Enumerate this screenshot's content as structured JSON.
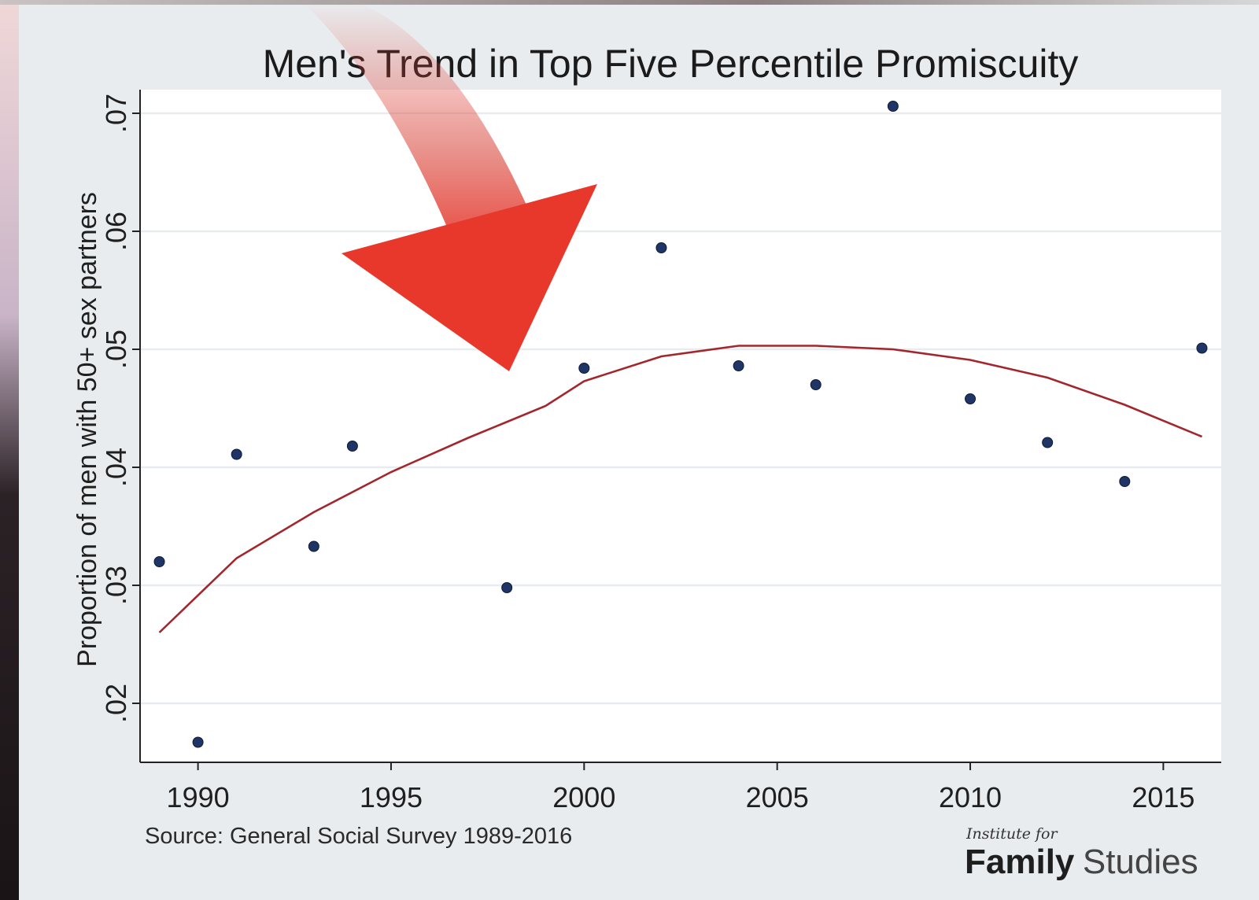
{
  "chart_data": {
    "type": "scatter",
    "title": "Men's Trend in Top Five Percentile Promiscuity",
    "ylabel": "Proportion of men with 50+ sex partners",
    "xlabel": "",
    "xlim": [
      1988.5,
      2016.5
    ],
    "ylim": [
      0.015,
      0.072
    ],
    "x_ticks": [
      1990,
      1995,
      2000,
      2005,
      2010,
      2015
    ],
    "y_ticks": [
      0.02,
      0.03,
      0.04,
      0.05,
      0.06,
      0.07
    ],
    "y_tick_labels": [
      ".02",
      ".03",
      ".04",
      ".05",
      ".06",
      ".07"
    ],
    "grid": true,
    "points": [
      {
        "x": 1989,
        "y": 0.032
      },
      {
        "x": 1990,
        "y": 0.0167
      },
      {
        "x": 1991,
        "y": 0.0411
      },
      {
        "x": 1993,
        "y": 0.0333
      },
      {
        "x": 1994,
        "y": 0.0418
      },
      {
        "x": 1998,
        "y": 0.0298
      },
      {
        "x": 2000,
        "y": 0.0484
      },
      {
        "x": 2002,
        "y": 0.0586
      },
      {
        "x": 2004,
        "y": 0.0486
      },
      {
        "x": 2006,
        "y": 0.047
      },
      {
        "x": 2008,
        "y": 0.0706
      },
      {
        "x": 2010,
        "y": 0.0458
      },
      {
        "x": 2012,
        "y": 0.0421
      },
      {
        "x": 2014,
        "y": 0.0388
      },
      {
        "x": 2016,
        "y": 0.0501
      }
    ],
    "fit_line": [
      {
        "x": 1989,
        "y": 0.026
      },
      {
        "x": 1991,
        "y": 0.0323
      },
      {
        "x": 1993,
        "y": 0.0362
      },
      {
        "x": 1995,
        "y": 0.0396
      },
      {
        "x": 1997,
        "y": 0.0425
      },
      {
        "x": 1999,
        "y": 0.0452
      },
      {
        "x": 2000,
        "y": 0.0473
      },
      {
        "x": 2002,
        "y": 0.0494
      },
      {
        "x": 2004,
        "y": 0.0503
      },
      {
        "x": 2006,
        "y": 0.0503
      },
      {
        "x": 2008,
        "y": 0.05
      },
      {
        "x": 2010,
        "y": 0.0491
      },
      {
        "x": 2012,
        "y": 0.0476
      },
      {
        "x": 2014,
        "y": 0.0453
      },
      {
        "x": 2016,
        "y": 0.0426
      }
    ],
    "marker_color": "#1f3566",
    "line_color": "#a3262c",
    "plot_background": "#ffffff"
  },
  "source_note": "Source: General Social Survey 1989-2016",
  "logo": {
    "line1": "Institute for",
    "word1": "Family",
    "word2": "Studies"
  },
  "annotation": {
    "shape": "arrow",
    "color": "#e8382c"
  }
}
